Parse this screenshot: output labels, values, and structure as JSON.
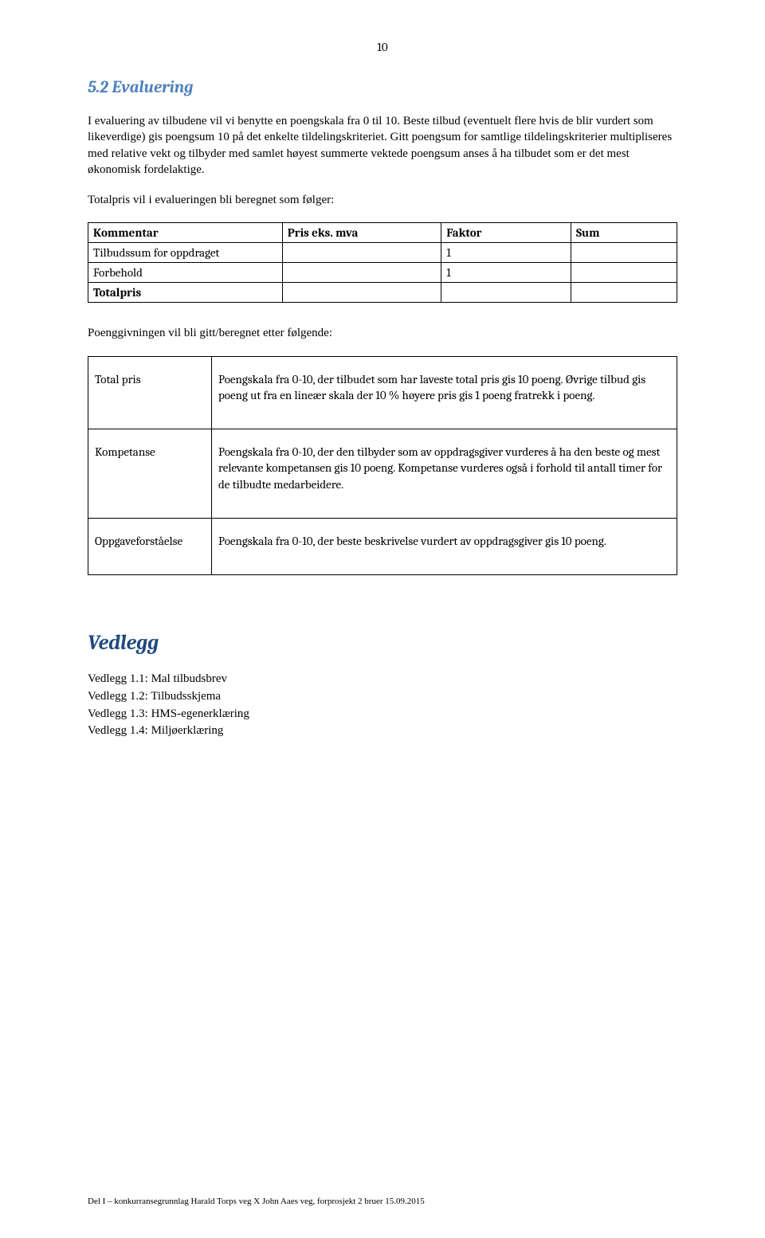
{
  "page_number": "10",
  "heading_5_2": "5.2 Evaluering",
  "para_1": "I evaluering av tilbudene vil vi benytte en poengskala fra 0 til 10. Beste tilbud (eventuelt flere hvis de blir vurdert som likeverdige) gis poengsum 10 på det enkelte tildelingskriteriet. Gitt poengsum for samtlige tildelingskriterier multipliseres med relative vekt og tilbyder med samlet høyest summerte vektede poengsum anses å ha tilbudet som er det mest økonomisk fordelaktige.",
  "para_2": "Totalpris vil i evalueringen bli beregnet som følger:",
  "table1": {
    "headers": [
      "Kommentar",
      "Pris eks. mva",
      "Faktor",
      "Sum"
    ],
    "rows": [
      [
        "Tilbudssum for oppdraget",
        "",
        "1",
        ""
      ],
      [
        "Forbehold",
        "",
        "1",
        ""
      ],
      [
        "Totalpris",
        "",
        "",
        ""
      ]
    ],
    "col_widths": [
      "33%",
      "27%",
      "22%",
      "18%"
    ]
  },
  "para_3": "Poenggivningen vil bli gitt/beregnet etter følgende:",
  "table2": {
    "rows": [
      {
        "label": "Total pris",
        "text": "Poengskala fra 0-10, der tilbudet som har laveste total pris gis 10 poeng. Øvrige tilbud gis poeng ut fra en lineær skala der 10 % høyere pris gis 1 poeng fratrekk i poeng."
      },
      {
        "label": "Kompetanse",
        "text": "Poengskala fra 0-10, der den tilbyder som av oppdragsgiver vurderes å ha den beste og mest relevante kompetansen gis 10 poeng. Kompetanse vurderes også i forhold til antall timer for de tilbudte medarbeidere."
      },
      {
        "label": "Oppgaveforståelse",
        "text": "Poengskala fra 0-10, der beste beskrivelse vurdert av oppdragsgiver gis 10 poeng."
      }
    ]
  },
  "heading_vedlegg": "Vedlegg",
  "vedlegg_items": [
    "Vedlegg 1.1: Mal tilbudsbrev",
    "Vedlegg 1.2: Tilbudsskjema",
    "Vedlegg 1.3: HMS-egenerklæring",
    "Vedlegg 1.4: Miljøerklæring"
  ],
  "footer_text": "Del I – konkurransegrunnlag Harald Torps veg X John Aaes veg,  forprosjekt 2 bruer 15.09.2015",
  "colors": {
    "heading_blue": "#4f81bd",
    "heading_dark_blue": "#1f497d",
    "text": "#000000",
    "background": "#ffffff"
  }
}
